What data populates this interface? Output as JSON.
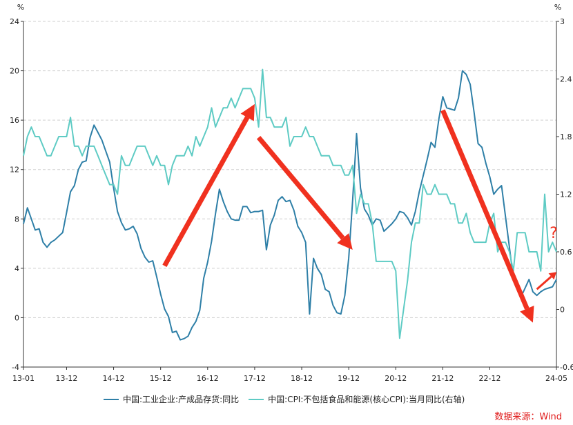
{
  "chart_data": {
    "type": "line",
    "title": "",
    "y_left": {
      "unit": "%",
      "range": [
        -4,
        24
      ],
      "ticks": [
        -4,
        0,
        4,
        8,
        12,
        16,
        20,
        24
      ]
    },
    "y_right": {
      "unit": "%",
      "range": [
        -0.6,
        3.0
      ],
      "ticks": [
        "-0.6",
        "0",
        "0.6",
        "1.2",
        "1.8",
        "2.4",
        "3"
      ]
    },
    "x_ticks": [
      "13-01",
      "13-12",
      "14-12",
      "15-12",
      "16-12",
      "17-12",
      "18-12",
      "19-12",
      "20-12",
      "21-12",
      "22-12",
      "24-05"
    ],
    "grid": true,
    "series": [
      {
        "name": "中国:工业企业:产成品存货:同比",
        "axis": "left",
        "color": "#2e7fa7",
        "points": [
          [
            "2013-01",
            7.6
          ],
          [
            "2013-02",
            8.9
          ],
          [
            "2013-03",
            8.0
          ],
          [
            "2013-04",
            7.1
          ],
          [
            "2013-05",
            7.2
          ],
          [
            "2013-06",
            6.1
          ],
          [
            "2013-07",
            5.7
          ],
          [
            "2013-08",
            6.1
          ],
          [
            "2013-09",
            6.3
          ],
          [
            "2013-10",
            6.6
          ],
          [
            "2013-11",
            6.9
          ],
          [
            "2013-12",
            8.5
          ],
          [
            "2014-01",
            10.2
          ],
          [
            "2014-02",
            10.7
          ],
          [
            "2014-03",
            12.0
          ],
          [
            "2014-04",
            12.6
          ],
          [
            "2014-05",
            12.7
          ],
          [
            "2014-06",
            14.6
          ],
          [
            "2014-07",
            15.6
          ],
          [
            "2014-08",
            15.0
          ],
          [
            "2014-09",
            14.4
          ],
          [
            "2014-10",
            13.5
          ],
          [
            "2014-11",
            12.6
          ],
          [
            "2014-12",
            10.5
          ],
          [
            "2015-01",
            8.6
          ],
          [
            "2015-02",
            7.7
          ],
          [
            "2015-03",
            7.1
          ],
          [
            "2015-04",
            7.2
          ],
          [
            "2015-05",
            7.4
          ],
          [
            "2015-06",
            6.8
          ],
          [
            "2015-07",
            5.6
          ],
          [
            "2015-08",
            4.9
          ],
          [
            "2015-09",
            4.5
          ],
          [
            "2015-10",
            4.6
          ],
          [
            "2015-11",
            3.3
          ],
          [
            "2015-12",
            1.9
          ],
          [
            "2016-01",
            0.7
          ],
          [
            "2016-02",
            0.1
          ],
          [
            "2016-03",
            -1.2
          ],
          [
            "2016-04",
            -1.1
          ],
          [
            "2016-05",
            -1.8
          ],
          [
            "2016-06",
            -1.7
          ],
          [
            "2016-07",
            -1.5
          ],
          [
            "2016-08",
            -0.8
          ],
          [
            "2016-09",
            -0.3
          ],
          [
            "2016-10",
            0.6
          ],
          [
            "2016-11",
            3.2
          ],
          [
            "2016-12",
            4.5
          ],
          [
            "2017-01",
            6.2
          ],
          [
            "2017-02",
            8.4
          ],
          [
            "2017-03",
            10.4
          ],
          [
            "2017-04",
            9.4
          ],
          [
            "2017-05",
            8.6
          ],
          [
            "2017-06",
            8.0
          ],
          [
            "2017-07",
            7.9
          ],
          [
            "2017-08",
            7.9
          ],
          [
            "2017-09",
            9.0
          ],
          [
            "2017-10",
            9.0
          ],
          [
            "2017-11",
            8.5
          ],
          [
            "2017-12",
            8.6
          ],
          [
            "2018-01",
            8.6
          ],
          [
            "2018-02",
            8.7
          ],
          [
            "2018-03",
            5.5
          ],
          [
            "2018-04",
            7.5
          ],
          [
            "2018-05",
            8.3
          ],
          [
            "2018-06",
            9.5
          ],
          [
            "2018-07",
            9.8
          ],
          [
            "2018-08",
            9.4
          ],
          [
            "2018-09",
            9.5
          ],
          [
            "2018-10",
            8.7
          ],
          [
            "2018-11",
            7.4
          ],
          [
            "2018-12",
            6.9
          ],
          [
            "2019-01",
            6.1
          ],
          [
            "2019-02",
            0.3
          ],
          [
            "2019-03",
            4.8
          ],
          [
            "2019-04",
            4.0
          ],
          [
            "2019-05",
            3.5
          ],
          [
            "2019-06",
            2.3
          ],
          [
            "2019-07",
            2.1
          ],
          [
            "2019-08",
            1.0
          ],
          [
            "2019-09",
            0.4
          ],
          [
            "2019-10",
            0.3
          ],
          [
            "2019-11",
            1.8
          ],
          [
            "2019-12",
            4.8
          ],
          [
            "2020-01",
            9.5
          ],
          [
            "2020-02",
            14.9
          ],
          [
            "2020-03",
            10.5
          ],
          [
            "2020-04",
            8.8
          ],
          [
            "2020-05",
            8.3
          ],
          [
            "2020-06",
            7.5
          ],
          [
            "2020-07",
            8.0
          ],
          [
            "2020-08",
            7.9
          ],
          [
            "2020-09",
            7.0
          ],
          [
            "2020-10",
            7.3
          ],
          [
            "2020-11",
            7.6
          ],
          [
            "2020-12",
            8.0
          ],
          [
            "2021-01",
            8.6
          ],
          [
            "2021-02",
            8.5
          ],
          [
            "2021-03",
            8.1
          ],
          [
            "2021-04",
            7.5
          ],
          [
            "2021-05",
            8.6
          ],
          [
            "2021-06",
            10.2
          ],
          [
            "2021-07",
            11.5
          ],
          [
            "2021-08",
            12.8
          ],
          [
            "2021-09",
            14.2
          ],
          [
            "2021-10",
            13.8
          ],
          [
            "2021-11",
            16.1
          ],
          [
            "2021-12",
            17.9
          ],
          [
            "2022-01",
            17.0
          ],
          [
            "2022-02",
            16.9
          ],
          [
            "2022-03",
            16.8
          ],
          [
            "2022-04",
            17.8
          ],
          [
            "2022-05",
            20.0
          ],
          [
            "2022-06",
            19.7
          ],
          [
            "2022-07",
            18.9
          ],
          [
            "2022-08",
            16.6
          ],
          [
            "2022-09",
            14.1
          ],
          [
            "2022-10",
            13.8
          ],
          [
            "2022-11",
            12.5
          ],
          [
            "2022-12",
            11.4
          ],
          [
            "2023-01",
            10.0
          ],
          [
            "2023-02",
            10.4
          ],
          [
            "2023-03",
            10.7
          ],
          [
            "2023-04",
            8.2
          ],
          [
            "2023-05",
            5.7
          ],
          [
            "2023-06",
            3.2
          ],
          [
            "2023-07",
            2.3
          ],
          [
            "2023-08",
            1.7
          ],
          [
            "2023-09",
            2.4
          ],
          [
            "2023-10",
            3.1
          ],
          [
            "2023-11",
            2.1
          ],
          [
            "2023-12",
            1.8
          ],
          [
            "2024-01",
            2.1
          ],
          [
            "2024-02",
            2.3
          ],
          [
            "2024-03",
            2.4
          ],
          [
            "2024-04",
            2.5
          ],
          [
            "2024-05",
            3.1
          ]
        ]
      },
      {
        "name": "中国:CPI:不包括食品和能源(核心CPI):当月同比(右轴)",
        "axis": "right",
        "color": "#5ecbc4",
        "points": [
          [
            "2013-01",
            1.6
          ],
          [
            "2013-02",
            1.8
          ],
          [
            "2013-03",
            1.9
          ],
          [
            "2013-04",
            1.8
          ],
          [
            "2013-05",
            1.8
          ],
          [
            "2013-06",
            1.7
          ],
          [
            "2013-07",
            1.6
          ],
          [
            "2013-08",
            1.6
          ],
          [
            "2013-09",
            1.7
          ],
          [
            "2013-10",
            1.8
          ],
          [
            "2013-11",
            1.8
          ],
          [
            "2013-12",
            1.8
          ],
          [
            "2014-01",
            2.0
          ],
          [
            "2014-02",
            1.7
          ],
          [
            "2014-03",
            1.7
          ],
          [
            "2014-04",
            1.6
          ],
          [
            "2014-05",
            1.7
          ],
          [
            "2014-06",
            1.7
          ],
          [
            "2014-07",
            1.7
          ],
          [
            "2014-08",
            1.6
          ],
          [
            "2014-09",
            1.5
          ],
          [
            "2014-10",
            1.4
          ],
          [
            "2014-11",
            1.3
          ],
          [
            "2014-12",
            1.3
          ],
          [
            "2015-01",
            1.2
          ],
          [
            "2015-02",
            1.6
          ],
          [
            "2015-03",
            1.5
          ],
          [
            "2015-04",
            1.5
          ],
          [
            "2015-05",
            1.6
          ],
          [
            "2015-06",
            1.7
          ],
          [
            "2015-07",
            1.7
          ],
          [
            "2015-08",
            1.7
          ],
          [
            "2015-09",
            1.6
          ],
          [
            "2015-10",
            1.5
          ],
          [
            "2015-11",
            1.6
          ],
          [
            "2015-12",
            1.5
          ],
          [
            "2016-01",
            1.5
          ],
          [
            "2016-02",
            1.3
          ],
          [
            "2016-03",
            1.5
          ],
          [
            "2016-04",
            1.6
          ],
          [
            "2016-05",
            1.6
          ],
          [
            "2016-06",
            1.6
          ],
          [
            "2016-07",
            1.7
          ],
          [
            "2016-08",
            1.6
          ],
          [
            "2016-09",
            1.8
          ],
          [
            "2016-10",
            1.7
          ],
          [
            "2016-11",
            1.8
          ],
          [
            "2016-12",
            1.9
          ],
          [
            "2017-01",
            2.1
          ],
          [
            "2017-02",
            1.9
          ],
          [
            "2017-03",
            2.0
          ],
          [
            "2017-04",
            2.1
          ],
          [
            "2017-05",
            2.1
          ],
          [
            "2017-06",
            2.2
          ],
          [
            "2017-07",
            2.1
          ],
          [
            "2017-08",
            2.2
          ],
          [
            "2017-09",
            2.3
          ],
          [
            "2017-10",
            2.3
          ],
          [
            "2017-11",
            2.3
          ],
          [
            "2017-12",
            2.2
          ],
          [
            "2018-01",
            1.9
          ],
          [
            "2018-02",
            2.5
          ],
          [
            "2018-03",
            2.0
          ],
          [
            "2018-04",
            2.0
          ],
          [
            "2018-05",
            1.9
          ],
          [
            "2018-06",
            1.9
          ],
          [
            "2018-07",
            1.9
          ],
          [
            "2018-08",
            2.0
          ],
          [
            "2018-09",
            1.7
          ],
          [
            "2018-10",
            1.8
          ],
          [
            "2018-11",
            1.8
          ],
          [
            "2018-12",
            1.8
          ],
          [
            "2019-01",
            1.9
          ],
          [
            "2019-02",
            1.8
          ],
          [
            "2019-03",
            1.8
          ],
          [
            "2019-04",
            1.7
          ],
          [
            "2019-05",
            1.6
          ],
          [
            "2019-06",
            1.6
          ],
          [
            "2019-07",
            1.6
          ],
          [
            "2019-08",
            1.5
          ],
          [
            "2019-09",
            1.5
          ],
          [
            "2019-10",
            1.5
          ],
          [
            "2019-11",
            1.4
          ],
          [
            "2019-12",
            1.4
          ],
          [
            "2020-01",
            1.5
          ],
          [
            "2020-02",
            1.0
          ],
          [
            "2020-03",
            1.2
          ],
          [
            "2020-04",
            1.1
          ],
          [
            "2020-05",
            1.1
          ],
          [
            "2020-06",
            0.9
          ],
          [
            "2020-07",
            0.5
          ],
          [
            "2020-08",
            0.5
          ],
          [
            "2020-09",
            0.5
          ],
          [
            "2020-10",
            0.5
          ],
          [
            "2020-11",
            0.5
          ],
          [
            "2020-12",
            0.4
          ],
          [
            "2021-01",
            -0.3
          ],
          [
            "2021-02",
            0.0
          ],
          [
            "2021-03",
            0.3
          ],
          [
            "2021-04",
            0.7
          ],
          [
            "2021-05",
            0.9
          ],
          [
            "2021-06",
            0.9
          ],
          [
            "2021-07",
            1.3
          ],
          [
            "2021-08",
            1.2
          ],
          [
            "2021-09",
            1.2
          ],
          [
            "2021-10",
            1.3
          ],
          [
            "2021-11",
            1.2
          ],
          [
            "2021-12",
            1.2
          ],
          [
            "2022-01",
            1.2
          ],
          [
            "2022-02",
            1.1
          ],
          [
            "2022-03",
            1.1
          ],
          [
            "2022-04",
            0.9
          ],
          [
            "2022-05",
            0.9
          ],
          [
            "2022-06",
            1.0
          ],
          [
            "2022-07",
            0.8
          ],
          [
            "2022-08",
            0.7
          ],
          [
            "2022-09",
            0.7
          ],
          [
            "2022-10",
            0.7
          ],
          [
            "2022-11",
            0.7
          ],
          [
            "2022-12",
            0.9
          ],
          [
            "2023-01",
            1.0
          ],
          [
            "2023-02",
            0.6
          ],
          [
            "2023-03",
            0.7
          ],
          [
            "2023-04",
            0.7
          ],
          [
            "2023-05",
            0.6
          ],
          [
            "2023-06",
            0.4
          ],
          [
            "2023-07",
            0.8
          ],
          [
            "2023-08",
            0.8
          ],
          [
            "2023-09",
            0.8
          ],
          [
            "2023-10",
            0.6
          ],
          [
            "2023-11",
            0.6
          ],
          [
            "2023-12",
            0.6
          ],
          [
            "2024-01",
            0.4
          ],
          [
            "2024-02",
            1.2
          ],
          [
            "2024-03",
            0.6
          ],
          [
            "2024-04",
            0.7
          ],
          [
            "2024-05",
            0.6
          ]
        ]
      }
    ],
    "annotations": [
      {
        "type": "arrow",
        "color": "#f0311f",
        "from": [
          "2016-01",
          4.2
        ],
        "to": [
          "2017-12",
          17.3
        ]
      },
      {
        "type": "arrow",
        "color": "#f0311f",
        "from": [
          "2018-01",
          14.6
        ],
        "to": [
          "2020-01",
          5.5
        ]
      },
      {
        "type": "arrow",
        "color": "#f0311f",
        "from": [
          "2021-12",
          16.8
        ],
        "to": [
          "2023-11",
          -0.4
        ]
      },
      {
        "type": "arrow",
        "color": "#f0311f",
        "from": [
          "2023-12",
          2.3
        ],
        "to": [
          "2024-05",
          3.7
        ]
      },
      {
        "type": "text",
        "text": "?",
        "color": "#f0311f",
        "at": [
          "2024-05",
          6.8
        ]
      }
    ]
  },
  "source_text": "数据来源：Wind"
}
